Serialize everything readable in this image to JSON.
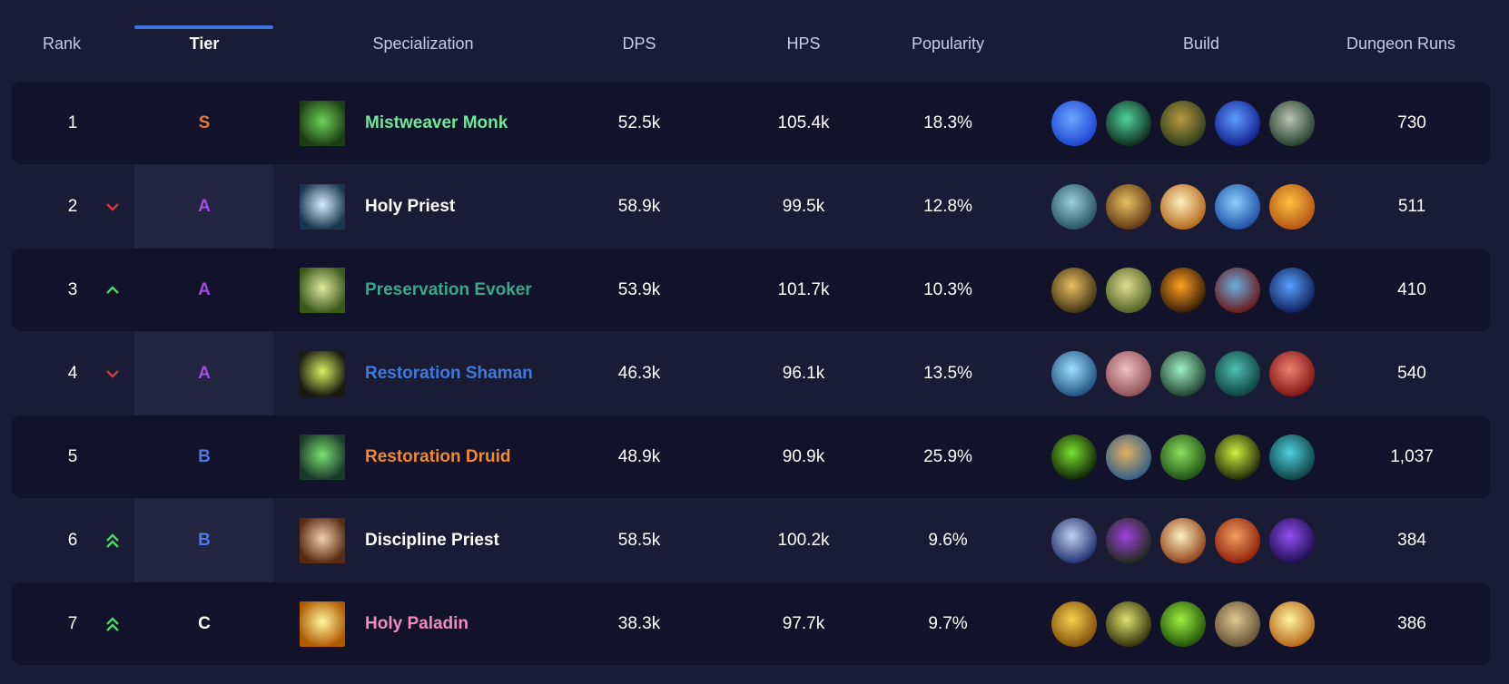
{
  "table": {
    "headers": [
      "Rank",
      "Tier",
      "Specialization",
      "DPS",
      "HPS",
      "Popularity",
      "Build",
      "Dungeon Runs"
    ],
    "active_sort": "Tier",
    "accent_color": "#3f74e0",
    "tier_colors": {
      "S": "#e07a3a",
      "A": "#a04ee0",
      "B": "#4a7ae8",
      "C": "#ffffff"
    },
    "rows": [
      {
        "rank": "1",
        "trend": "none",
        "tier": "S",
        "spec": "Mistweaver Monk",
        "spec_color": "#6ee89a",
        "spec_icon": [
          "#1d3d12",
          "#6cd45a"
        ],
        "dps": "52.5k",
        "hps": "105.4k",
        "popularity": "18.3%",
        "runs": "730",
        "build": [
          [
            "#1b3fd0",
            "#6aa8ff"
          ],
          [
            "#0d2418",
            "#4ed3a0"
          ],
          [
            "#2a3a1a",
            "#b89a40"
          ],
          [
            "#0f1a8a",
            "#5e9cff"
          ],
          [
            "#1f3a2a",
            "#b8c4b0"
          ]
        ]
      },
      {
        "rank": "2",
        "trend": "down",
        "tier": "A",
        "spec": "Holy Priest",
        "spec_color": "#ffffff",
        "spec_icon": [
          "#1a3550",
          "#d8ecff"
        ],
        "dps": "58.9k",
        "hps": "99.5k",
        "popularity": "12.8%",
        "runs": "511",
        "build": [
          [
            "#224a5a",
            "#9ad2e0"
          ],
          [
            "#5a3010",
            "#e8c060"
          ],
          [
            "#b06010",
            "#fff0c0"
          ],
          [
            "#1a4aa0",
            "#8ad0ff"
          ],
          [
            "#b05010",
            "#ffc040"
          ]
        ]
      },
      {
        "rank": "3",
        "trend": "up",
        "tier": "A",
        "spec": "Preservation Evoker",
        "spec_color": "#3aa88a",
        "spec_icon": [
          "#3a5a1a",
          "#e0e8a0"
        ],
        "dps": "53.9k",
        "hps": "101.7k",
        "popularity": "10.3%",
        "runs": "410",
        "build": [
          [
            "#3a2a10",
            "#e8c060"
          ],
          [
            "#4a5a20",
            "#e0e090"
          ],
          [
            "#2a1505",
            "#ffa020"
          ],
          [
            "#6a1010",
            "#6ab0e0"
          ],
          [
            "#0a1a50",
            "#5aa0ff"
          ]
        ]
      },
      {
        "rank": "4",
        "trend": "down",
        "tier": "A",
        "spec": "Restoration Shaman",
        "spec_color": "#3d7ae0",
        "spec_icon": [
          "#1a1a10",
          "#d8f060"
        ],
        "dps": "46.3k",
        "hps": "96.1k",
        "popularity": "13.5%",
        "runs": "540",
        "build": [
          [
            "#1a4a7a",
            "#a0e0ff"
          ],
          [
            "#8a4a50",
            "#f0c0c0"
          ],
          [
            "#1a3a2a",
            "#a0f0c0"
          ],
          [
            "#0a3a3a",
            "#50c0b0"
          ],
          [
            "#7a1010",
            "#f08070"
          ]
        ]
      },
      {
        "rank": "5",
        "trend": "none",
        "tier": "B",
        "spec": "Restoration Druid",
        "spec_color": "#f08a30",
        "spec_icon": [
          "#1a3a2a",
          "#7ae070"
        ],
        "dps": "48.9k",
        "hps": "90.9k",
        "popularity": "25.9%",
        "runs": "1,037",
        "build": [
          [
            "#0a1a05",
            "#7ae030"
          ],
          [
            "#2a5a8a",
            "#e0b060"
          ],
          [
            "#1a4a10",
            "#8ae060"
          ],
          [
            "#1a2005",
            "#d0f040"
          ],
          [
            "#0a3a3a",
            "#50d0e0"
          ]
        ]
      },
      {
        "rank": "6",
        "trend": "double-up",
        "tier": "B",
        "spec": "Discipline Priest",
        "spec_color": "#ffffff",
        "spec_icon": [
          "#5a2a10",
          "#f0d0b0"
        ],
        "dps": "58.5k",
        "hps": "100.2k",
        "popularity": "9.6%",
        "runs": "384",
        "build": [
          [
            "#1a2a6a",
            "#c0d0f0"
          ],
          [
            "#1a2a10",
            "#a040e0"
          ],
          [
            "#8a3a10",
            "#fff0c0"
          ],
          [
            "#8a1a05",
            "#f0a060"
          ],
          [
            "#1a0a4a",
            "#9050f0"
          ]
        ]
      },
      {
        "rank": "7",
        "trend": "double-up",
        "tier": "C",
        "spec": "Holy Paladin",
        "spec_color": "#f08ac0",
        "spec_icon": [
          "#b05a00",
          "#fff8a0"
        ],
        "dps": "38.3k",
        "hps": "97.7k",
        "popularity": "9.7%",
        "runs": "386",
        "build": [
          [
            "#7a4a05",
            "#f8d050"
          ],
          [
            "#2a2a05",
            "#e0e070"
          ],
          [
            "#1a4a05",
            "#a0f040"
          ],
          [
            "#5a4a30",
            "#e0c890"
          ],
          [
            "#b06010",
            "#fff4a0"
          ]
        ]
      }
    ]
  }
}
